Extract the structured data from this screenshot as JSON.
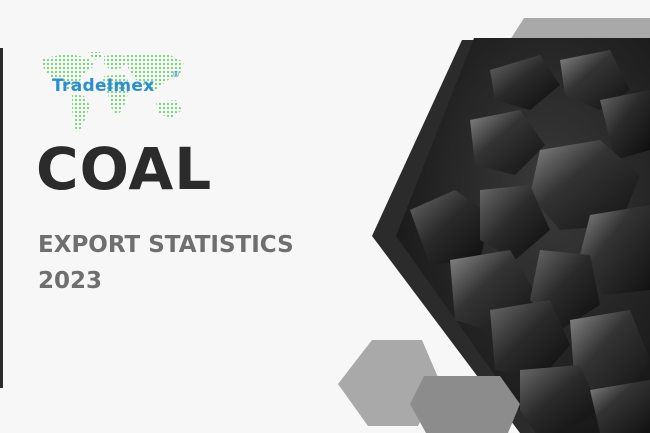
{
  "brand": {
    "name": "TradeImex",
    "registered_mark": "®"
  },
  "hero": {
    "title": "COAL",
    "subtitle_line1": "EXPORT STATISTICS",
    "subtitle_line2": "2023"
  },
  "colors": {
    "dark": "#2b2b2b",
    "gray_text": "#6f6f6f",
    "brand_blue": "#2a8fd0",
    "map_green": "#6fd36f",
    "hex_light": "#a9a9a9",
    "hex_mid": "#8c8c8c"
  },
  "image": {
    "subject": "pile of coal lumps"
  }
}
